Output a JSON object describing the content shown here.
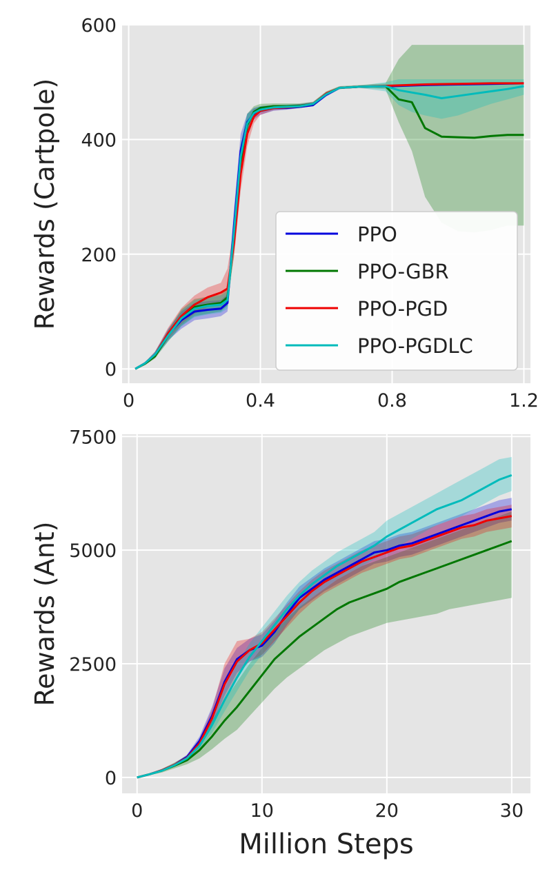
{
  "figure": {
    "xlabel": "Million Steps"
  },
  "chart_data": [
    {
      "type": "line",
      "title": "",
      "ylabel": "Rewards (Cartpole)",
      "xlabel": "",
      "xlim": [
        -0.02,
        1.22
      ],
      "ylim": [
        -25,
        600
      ],
      "xticks": [
        0,
        0.4,
        0.8,
        1.2
      ],
      "xtick_labels": [
        "0",
        "0.4",
        "0.8",
        "1.2"
      ],
      "yticks": [
        0,
        200,
        400,
        600
      ],
      "ytick_labels": [
        "0",
        "200",
        "400",
        "600"
      ],
      "grid": true,
      "legend": "lower-right",
      "series": [
        {
          "name": "PPO",
          "color": "#0000dd",
          "x": [
            0.02,
            0.05,
            0.08,
            0.12,
            0.16,
            0.2,
            0.24,
            0.28,
            0.3,
            0.32,
            0.34,
            0.36,
            0.38,
            0.4,
            0.44,
            0.48,
            0.52,
            0.56,
            0.6,
            0.64,
            0.7,
            0.8,
            0.9,
            1.0,
            1.1,
            1.2
          ],
          "y": [
            0,
            10,
            25,
            60,
            85,
            100,
            103,
            105,
            115,
            250,
            380,
            430,
            445,
            450,
            455,
            455,
            457,
            460,
            478,
            490,
            492,
            493,
            495,
            496,
            497,
            498
          ],
          "lower": [
            0,
            8,
            20,
            50,
            70,
            85,
            88,
            92,
            100,
            220,
            350,
            410,
            435,
            443,
            450,
            452,
            455,
            458,
            475,
            488,
            491,
            492,
            494,
            495,
            496,
            497
          ],
          "upper": [
            0,
            12,
            30,
            70,
            100,
            115,
            118,
            120,
            130,
            280,
            410,
            445,
            455,
            458,
            460,
            460,
            462,
            465,
            482,
            492,
            494,
            495,
            497,
            498,
            499,
            500
          ]
        },
        {
          "name": "PPO-GBR",
          "color": "#007700",
          "x": [
            0.02,
            0.05,
            0.08,
            0.12,
            0.16,
            0.2,
            0.24,
            0.28,
            0.3,
            0.32,
            0.34,
            0.36,
            0.38,
            0.4,
            0.44,
            0.48,
            0.52,
            0.56,
            0.6,
            0.64,
            0.7,
            0.78,
            0.82,
            0.86,
            0.9,
            0.95,
            1.0,
            1.05,
            1.1,
            1.15,
            1.2
          ],
          "y": [
            0,
            9,
            22,
            58,
            90,
            108,
            112,
            115,
            125,
            230,
            360,
            425,
            448,
            455,
            458,
            458,
            459,
            462,
            480,
            490,
            492,
            493,
            470,
            465,
            420,
            405,
            404,
            403,
            406,
            408,
            408
          ],
          "lower": [
            0,
            7,
            18,
            48,
            75,
            92,
            96,
            100,
            110,
            200,
            330,
            405,
            438,
            448,
            453,
            454,
            455,
            458,
            476,
            488,
            490,
            488,
            430,
            380,
            300,
            255,
            240,
            238,
            242,
            250,
            250
          ],
          "upper": [
            0,
            11,
            26,
            68,
            104,
            122,
            126,
            130,
            140,
            260,
            390,
            445,
            458,
            462,
            463,
            463,
            463,
            466,
            484,
            493,
            495,
            498,
            540,
            565,
            565,
            565,
            565,
            565,
            565,
            565,
            565
          ]
        },
        {
          "name": "PPO-PGD",
          "color": "#ee0000",
          "x": [
            0.02,
            0.05,
            0.08,
            0.12,
            0.16,
            0.2,
            0.24,
            0.28,
            0.3,
            0.32,
            0.34,
            0.36,
            0.38,
            0.4,
            0.44,
            0.48,
            0.52,
            0.56,
            0.6,
            0.64,
            0.7,
            0.8,
            0.9,
            1.0,
            1.1,
            1.2
          ],
          "y": [
            0,
            10,
            25,
            62,
            92,
            112,
            125,
            133,
            140,
            220,
            340,
            410,
            440,
            450,
            455,
            456,
            458,
            462,
            480,
            490,
            492,
            494,
            496,
            497,
            498,
            498
          ],
          "lower": [
            0,
            8,
            20,
            52,
            78,
            96,
            108,
            118,
            125,
            195,
            310,
            388,
            428,
            443,
            451,
            453,
            455,
            459,
            477,
            488,
            490,
            492,
            494,
            495,
            496,
            497
          ],
          "upper": [
            0,
            12,
            30,
            72,
            106,
            128,
            142,
            150,
            175,
            250,
            370,
            432,
            452,
            457,
            460,
            460,
            461,
            465,
            483,
            492,
            494,
            496,
            498,
            499,
            500,
            500
          ]
        },
        {
          "name": "PPO-PGDLC",
          "color": "#00bbbb",
          "x": [
            0.02,
            0.05,
            0.08,
            0.12,
            0.16,
            0.2,
            0.24,
            0.28,
            0.3,
            0.32,
            0.34,
            0.36,
            0.38,
            0.4,
            0.44,
            0.48,
            0.52,
            0.56,
            0.6,
            0.64,
            0.7,
            0.78,
            0.82,
            0.86,
            0.9,
            0.95,
            1.0,
            1.05,
            1.1,
            1.15,
            1.2
          ],
          "y": [
            0,
            10,
            25,
            58,
            88,
            105,
            110,
            112,
            120,
            240,
            370,
            428,
            446,
            452,
            456,
            457,
            458,
            462,
            479,
            490,
            492,
            493,
            486,
            482,
            478,
            472,
            476,
            480,
            484,
            488,
            493
          ],
          "lower": [
            0,
            8,
            20,
            48,
            74,
            90,
            95,
            98,
            105,
            215,
            345,
            412,
            438,
            447,
            452,
            453,
            455,
            459,
            476,
            488,
            490,
            484,
            460,
            448,
            442,
            436,
            442,
            452,
            462,
            470,
            478
          ],
          "upper": [
            0,
            12,
            30,
            68,
            102,
            120,
            125,
            128,
            135,
            265,
            395,
            444,
            454,
            458,
            460,
            461,
            461,
            465,
            482,
            492,
            494,
            500,
            505,
            505,
            505,
            505,
            505,
            505,
            505,
            505,
            505
          ]
        }
      ]
    },
    {
      "type": "line",
      "title": "",
      "ylabel": "Rewards (Ant)",
      "xlabel": "Million Steps",
      "xlim": [
        -1.2,
        31.5
      ],
      "ylim": [
        -350,
        7550
      ],
      "xticks": [
        0,
        10,
        20,
        30
      ],
      "xtick_labels": [
        "0",
        "10",
        "20",
        "30"
      ],
      "yticks": [
        0,
        2500,
        5000,
        7500
      ],
      "ytick_labels": [
        "0",
        "2500",
        "5000",
        "7500"
      ],
      "grid": true,
      "legend": "none",
      "series": [
        {
          "name": "PPO",
          "color": "#0000dd",
          "x": [
            0,
            1,
            2,
            3,
            4,
            5,
            6,
            7,
            8,
            9,
            10,
            11,
            12,
            13,
            14,
            15,
            16,
            17,
            18,
            19,
            20,
            21,
            22,
            23,
            24,
            25,
            26,
            27,
            28,
            29,
            30
          ],
          "y": [
            0,
            70,
            160,
            280,
            450,
            800,
            1350,
            2100,
            2600,
            2800,
            2900,
            3200,
            3600,
            3950,
            4150,
            4350,
            4500,
            4650,
            4800,
            4950,
            5000,
            5100,
            5150,
            5250,
            5350,
            5450,
            5550,
            5650,
            5750,
            5850,
            5900
          ],
          "lower": [
            0,
            60,
            140,
            250,
            400,
            700,
            1150,
            1800,
            2300,
            2550,
            2650,
            2950,
            3350,
            3700,
            3900,
            4100,
            4250,
            4400,
            4550,
            4700,
            4750,
            4850,
            4900,
            5000,
            5100,
            5200,
            5300,
            5400,
            5500,
            5600,
            5650
          ],
          "upper": [
            0,
            80,
            180,
            310,
            500,
            900,
            1550,
            2400,
            2850,
            3050,
            3150,
            3450,
            3850,
            4200,
            4400,
            4600,
            4750,
            4900,
            5050,
            5200,
            5250,
            5350,
            5400,
            5500,
            5600,
            5700,
            5800,
            5900,
            6000,
            6100,
            6150
          ]
        },
        {
          "name": "PPO-GBR",
          "color": "#007700",
          "x": [
            0,
            1,
            2,
            3,
            4,
            5,
            6,
            7,
            8,
            9,
            10,
            11,
            12,
            13,
            14,
            15,
            16,
            17,
            18,
            19,
            20,
            21,
            22,
            23,
            24,
            25,
            26,
            27,
            28,
            29,
            30
          ],
          "y": [
            0,
            70,
            150,
            260,
            380,
            600,
            900,
            1250,
            1550,
            1900,
            2250,
            2600,
            2850,
            3100,
            3300,
            3500,
            3700,
            3850,
            3950,
            4050,
            4150,
            4300,
            4400,
            4500,
            4600,
            4700,
            4800,
            4900,
            5000,
            5100,
            5200
          ],
          "lower": [
            0,
            50,
            110,
            200,
            290,
            420,
            620,
            850,
            1050,
            1350,
            1650,
            1950,
            2200,
            2400,
            2600,
            2800,
            2950,
            3100,
            3200,
            3300,
            3400,
            3450,
            3500,
            3550,
            3600,
            3700,
            3750,
            3800,
            3850,
            3900,
            3950
          ],
          "upper": [
            0,
            90,
            190,
            330,
            480,
            800,
            1250,
            1700,
            2100,
            2500,
            2850,
            3200,
            3500,
            3750,
            3950,
            4150,
            4350,
            4500,
            4650,
            4750,
            4850,
            4950,
            5050,
            5150,
            5250,
            5350,
            5450,
            5550,
            5650,
            5750,
            5850
          ]
        },
        {
          "name": "PPO-PGD",
          "color": "#ee0000",
          "x": [
            0,
            1,
            2,
            3,
            4,
            5,
            6,
            7,
            8,
            9,
            10,
            11,
            12,
            13,
            14,
            15,
            16,
            17,
            18,
            19,
            20,
            21,
            22,
            23,
            24,
            25,
            26,
            27,
            28,
            29,
            30
          ],
          "y": [
            0,
            70,
            160,
            280,
            430,
            750,
            1300,
            2050,
            2550,
            2800,
            2950,
            3250,
            3550,
            3850,
            4100,
            4300,
            4450,
            4600,
            4750,
            4850,
            4950,
            5050,
            5100,
            5200,
            5300,
            5400,
            5500,
            5550,
            5650,
            5700,
            5750
          ],
          "lower": [
            0,
            60,
            140,
            250,
            380,
            650,
            1100,
            1750,
            2250,
            2550,
            2700,
            3000,
            3300,
            3600,
            3850,
            4050,
            4200,
            4350,
            4500,
            4600,
            4700,
            4800,
            4850,
            4950,
            5050,
            5150,
            5250,
            5300,
            5400,
            5450,
            5500
          ],
          "upper": [
            0,
            80,
            180,
            310,
            480,
            850,
            1500,
            2500,
            3000,
            3050,
            3200,
            3500,
            3800,
            4100,
            4350,
            4550,
            4700,
            4850,
            5000,
            5100,
            5200,
            5300,
            5350,
            5450,
            5550,
            5650,
            5750,
            5800,
            5900,
            5950,
            6000
          ]
        },
        {
          "name": "PPO-PGDLC",
          "color": "#00bbbb",
          "x": [
            0,
            1,
            2,
            3,
            4,
            5,
            6,
            7,
            8,
            9,
            10,
            11,
            12,
            13,
            14,
            15,
            16,
            17,
            18,
            19,
            20,
            21,
            22,
            23,
            24,
            25,
            26,
            27,
            28,
            29,
            30
          ],
          "y": [
            0,
            70,
            150,
            270,
            420,
            700,
            1150,
            1700,
            2200,
            2650,
            3000,
            3350,
            3700,
            4000,
            4250,
            4450,
            4650,
            4800,
            4950,
            5100,
            5300,
            5450,
            5600,
            5750,
            5900,
            6000,
            6100,
            6250,
            6400,
            6550,
            6650
          ],
          "lower": [
            0,
            60,
            130,
            240,
            370,
            600,
            980,
            1450,
            1900,
            2350,
            2700,
            3050,
            3400,
            3700,
            3950,
            4150,
            4350,
            4500,
            4650,
            4800,
            4950,
            5100,
            5250,
            5400,
            5550,
            5650,
            5750,
            5900,
            6050,
            6200,
            6300
          ],
          "upper": [
            0,
            80,
            170,
            300,
            470,
            800,
            1320,
            1950,
            2500,
            2950,
            3300,
            3650,
            4000,
            4300,
            4550,
            4750,
            4950,
            5100,
            5250,
            5400,
            5650,
            5800,
            5950,
            6100,
            6250,
            6400,
            6550,
            6700,
            6850,
            7000,
            7050
          ]
        }
      ]
    }
  ]
}
